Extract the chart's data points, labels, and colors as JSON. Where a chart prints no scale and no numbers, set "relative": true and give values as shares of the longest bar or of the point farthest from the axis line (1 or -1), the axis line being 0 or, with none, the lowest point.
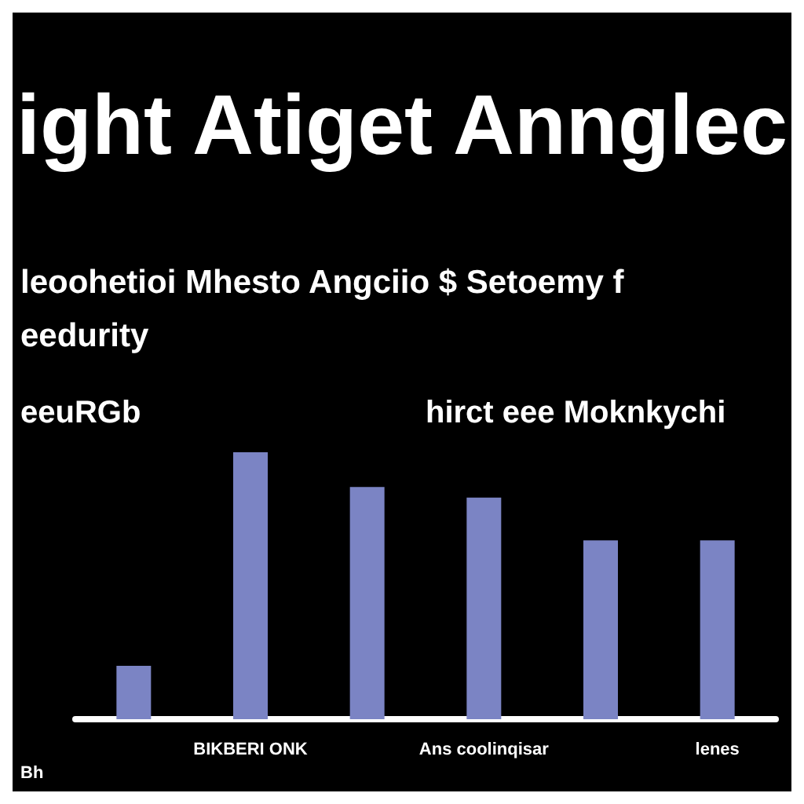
{
  "chart_data": {
    "type": "bar",
    "title": "ight Atiget Annglec",
    "subtitle": "leoohetioi Mhesto Angciio $ Setoemy f\needurity",
    "annotations": [
      "eeuRGb",
      "hirct eee Moknkychi",
      "Bh"
    ],
    "categories": [
      null,
      "BIKBERI ONK",
      null,
      "Ans coolinqisar",
      null,
      "lenes"
    ],
    "values": [
      0.2,
      1,
      0.87,
      0.83,
      0.67,
      0.67
    ],
    "color": "#7b84c4",
    "relative": true
  }
}
